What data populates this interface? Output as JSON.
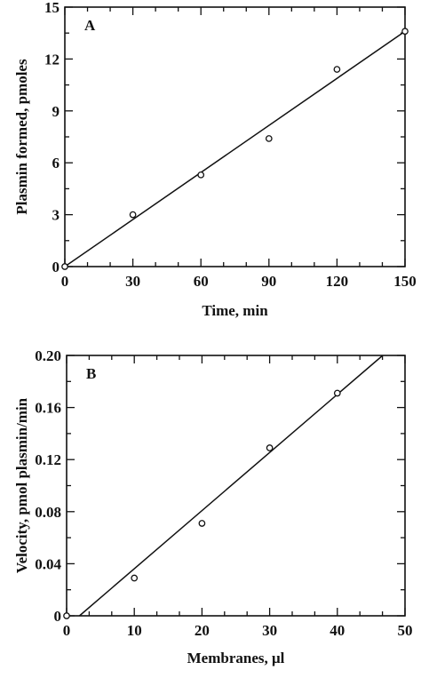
{
  "chart_data": [
    {
      "type": "scatter",
      "panel": "A",
      "title": "",
      "xlabel": "Time, min",
      "ylabel": "Plasmin formed, pmoles",
      "xlim": [
        0,
        150
      ],
      "ylim": [
        0,
        15
      ],
      "xticks": [
        0,
        30,
        60,
        90,
        120,
        150
      ],
      "xtick_labels": [
        "0",
        "30",
        "60",
        "90",
        "120",
        "150"
      ],
      "yticks": [
        0,
        3,
        6,
        9,
        12,
        15
      ],
      "ytick_labels": [
        "0",
        "3",
        "6",
        "9",
        "12",
        "15"
      ],
      "grid": false,
      "points": [
        {
          "x": 0,
          "y": 0
        },
        {
          "x": 30,
          "y": 3.0
        },
        {
          "x": 60,
          "y": 5.3
        },
        {
          "x": 90,
          "y": 7.4
        },
        {
          "x": 120,
          "y": 11.4
        },
        {
          "x": 150,
          "y": 13.6
        }
      ],
      "fit_line": {
        "x": [
          0,
          150
        ],
        "y": [
          0,
          13.6
        ]
      }
    },
    {
      "type": "scatter",
      "panel": "B",
      "title": "",
      "xlabel": "Membranes, μl",
      "ylabel": "Velocity, pmol plasmin/min",
      "xlim": [
        0,
        50
      ],
      "ylim": [
        0,
        0.2
      ],
      "xticks": [
        0,
        10,
        20,
        30,
        40,
        50
      ],
      "xtick_labels": [
        "0",
        "10",
        "20",
        "30",
        "40",
        "50"
      ],
      "yticks": [
        0,
        0.04,
        0.08,
        0.12,
        0.16,
        0.2
      ],
      "ytick_labels": [
        "0",
        "0.04",
        "0.08",
        "0.12",
        "0.16",
        "0.20"
      ],
      "grid": false,
      "points": [
        {
          "x": 0,
          "y": 0
        },
        {
          "x": 10,
          "y": 0.029
        },
        {
          "x": 20,
          "y": 0.071
        },
        {
          "x": 30,
          "y": 0.129
        },
        {
          "x": 40,
          "y": 0.171
        }
      ],
      "fit_line": {
        "x": [
          1.9,
          46.7
        ],
        "y": [
          0,
          0.2
        ]
      }
    }
  ]
}
